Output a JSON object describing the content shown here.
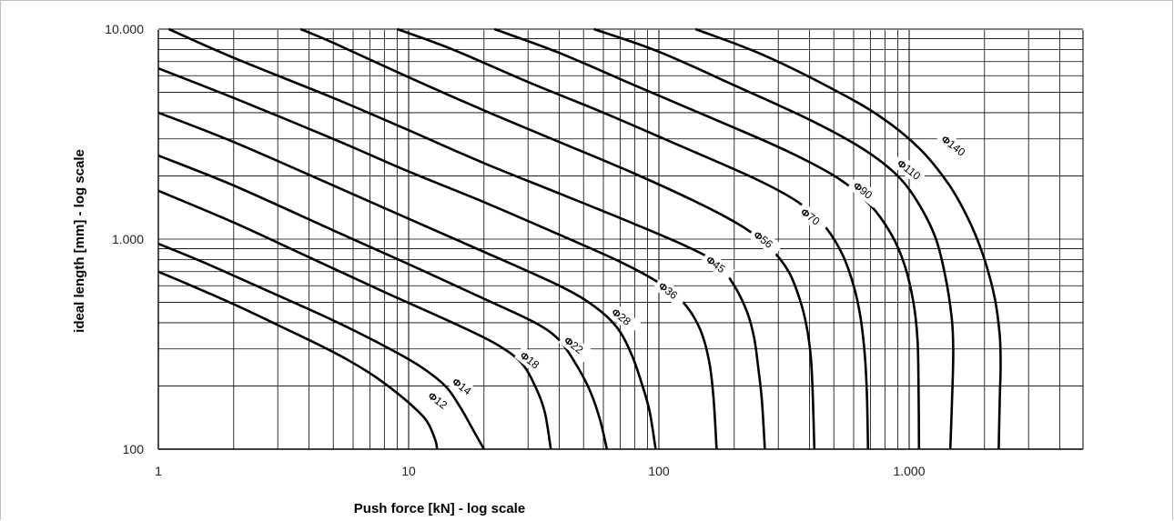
{
  "chart_data": {
    "type": "line",
    "title": "",
    "xlabel": "Push force [kN] - log scale",
    "ylabel": "ideal length [mm] - log scale",
    "x_scale": "log",
    "y_scale": "log",
    "xlim": [
      1,
      5000
    ],
    "ylim": [
      100,
      10000
    ],
    "grid": true,
    "x_ticks": [
      {
        "value": 1,
        "label": "1"
      },
      {
        "value": 10,
        "label": "10"
      },
      {
        "value": 100,
        "label": "100"
      },
      {
        "value": 1000,
        "label": "1.000"
      }
    ],
    "y_ticks": [
      {
        "value": 100,
        "label": "100"
      },
      {
        "value": 1000,
        "label": "1.000"
      },
      {
        "value": 10000,
        "label": "10.000"
      }
    ],
    "series": [
      {
        "name": "Φ12",
        "label_symbol": "Φ",
        "label_number": "12",
        "label_at": [
          12,
          180
        ],
        "points": [
          [
            1,
            700
          ],
          [
            1.5,
            570
          ],
          [
            2,
            490
          ],
          [
            3,
            390
          ],
          [
            5,
            290
          ],
          [
            7,
            230
          ],
          [
            9,
            185
          ],
          [
            11,
            150
          ],
          [
            12,
            132
          ],
          [
            12.8,
            110
          ],
          [
            13,
            100
          ]
        ]
      },
      {
        "name": "Φ14",
        "label_symbol": "Φ",
        "label_number": "14",
        "label_at": [
          15,
          210
        ],
        "points": [
          [
            1,
            950
          ],
          [
            1.5,
            780
          ],
          [
            2,
            670
          ],
          [
            3,
            540
          ],
          [
            5,
            410
          ],
          [
            8,
            310
          ],
          [
            11,
            250
          ],
          [
            14,
            200
          ],
          [
            16,
            160
          ],
          [
            18,
            125
          ],
          [
            20,
            100
          ]
        ]
      },
      {
        "name": "Φ18",
        "label_symbol": "Φ",
        "label_number": "18",
        "label_at": [
          28,
          280
        ],
        "points": [
          [
            1,
            1700
          ],
          [
            2,
            1200
          ],
          [
            4,
            820
          ],
          [
            8,
            560
          ],
          [
            15,
            400
          ],
          [
            22,
            320
          ],
          [
            28,
            260
          ],
          [
            32,
            200
          ],
          [
            35,
            150
          ],
          [
            37,
            100
          ]
        ]
      },
      {
        "name": "Φ22",
        "label_symbol": "Φ",
        "label_number": "22",
        "label_at": [
          42,
          330
        ],
        "points": [
          [
            1,
            2500
          ],
          [
            2,
            1800
          ],
          [
            5,
            1100
          ],
          [
            10,
            760
          ],
          [
            20,
            520
          ],
          [
            32,
            400
          ],
          [
            40,
            330
          ],
          [
            47,
            250
          ],
          [
            53,
            190
          ],
          [
            58,
            140
          ],
          [
            62,
            100
          ]
        ]
      },
      {
        "name": "Φ28",
        "label_symbol": "Φ",
        "label_number": "28",
        "label_at": [
          65,
          450
        ],
        "points": [
          [
            1,
            4000
          ],
          [
            2,
            2900
          ],
          [
            5,
            1800
          ],
          [
            10,
            1250
          ],
          [
            20,
            870
          ],
          [
            40,
            600
          ],
          [
            55,
            480
          ],
          [
            68,
            380
          ],
          [
            78,
            280
          ],
          [
            86,
            200
          ],
          [
            92,
            150
          ],
          [
            97,
            100
          ]
        ]
      },
      {
        "name": "Φ36",
        "label_symbol": "Φ",
        "label_number": "36",
        "label_at": [
          100,
          600
        ],
        "points": [
          [
            1,
            6500
          ],
          [
            2,
            4700
          ],
          [
            5,
            3000
          ],
          [
            10,
            2100
          ],
          [
            20,
            1500
          ],
          [
            40,
            1050
          ],
          [
            70,
            780
          ],
          [
            100,
            620
          ],
          [
            125,
            500
          ],
          [
            145,
            380
          ],
          [
            158,
            270
          ],
          [
            165,
            180
          ],
          [
            170,
            100
          ]
        ]
      },
      {
        "name": "Φ45",
        "label_symbol": "Φ",
        "label_number": "45",
        "label_at": [
          155,
          800
        ],
        "points": [
          [
            1.1,
            10000
          ],
          [
            2,
            7300
          ],
          [
            5,
            4700
          ],
          [
            10,
            3300
          ],
          [
            20,
            2300
          ],
          [
            40,
            1650
          ],
          [
            80,
            1180
          ],
          [
            130,
            920
          ],
          [
            170,
            770
          ],
          [
            200,
            600
          ],
          [
            225,
            450
          ],
          [
            240,
            340
          ],
          [
            250,
            240
          ],
          [
            258,
            170
          ],
          [
            265,
            100
          ]
        ]
      },
      {
        "name": "Φ56",
        "label_symbol": "Φ",
        "label_number": "56",
        "label_at": [
          240,
          1050
        ],
        "points": [
          [
            3.7,
            10000
          ],
          [
            5,
            8600
          ],
          [
            10,
            5900
          ],
          [
            20,
            4100
          ],
          [
            40,
            2900
          ],
          [
            80,
            2050
          ],
          [
            150,
            1450
          ],
          [
            220,
            1130
          ],
          [
            280,
            900
          ],
          [
            330,
            700
          ],
          [
            365,
            520
          ],
          [
            390,
            380
          ],
          [
            405,
            270
          ],
          [
            412,
            180
          ],
          [
            418,
            100
          ]
        ]
      },
      {
        "name": "Φ70",
        "label_symbol": "Φ",
        "label_number": "70",
        "label_at": [
          370,
          1350
        ],
        "points": [
          [
            9,
            10000
          ],
          [
            15,
            8000
          ],
          [
            30,
            5600
          ],
          [
            60,
            4000
          ],
          [
            120,
            2800
          ],
          [
            240,
            1950
          ],
          [
            360,
            1500
          ],
          [
            460,
            1150
          ],
          [
            540,
            850
          ],
          [
            600,
            600
          ],
          [
            640,
            420
          ],
          [
            665,
            280
          ],
          [
            678,
            180
          ],
          [
            685,
            100
          ]
        ]
      },
      {
        "name": "Φ90",
        "label_symbol": "Φ",
        "label_number": "90",
        "label_at": [
          600,
          1800
        ],
        "points": [
          [
            22,
            10000
          ],
          [
            40,
            7700
          ],
          [
            80,
            5400
          ],
          [
            160,
            3800
          ],
          [
            320,
            2650
          ],
          [
            520,
            1950
          ],
          [
            700,
            1450
          ],
          [
            850,
            1050
          ],
          [
            960,
            750
          ],
          [
            1040,
            500
          ],
          [
            1080,
            330
          ],
          [
            1090,
            200
          ],
          [
            1095,
            100
          ]
        ]
      },
      {
        "name": "Φ110",
        "label_symbol": "Φ",
        "label_number": "110",
        "label_at": [
          900,
          2300
        ],
        "points": [
          [
            55,
            10000
          ],
          [
            100,
            7800
          ],
          [
            200,
            5400
          ],
          [
            400,
            3700
          ],
          [
            650,
            2700
          ],
          [
            900,
            2000
          ],
          [
            1100,
            1450
          ],
          [
            1280,
            1000
          ],
          [
            1400,
            650
          ],
          [
            1480,
            420
          ],
          [
            1500,
            300
          ],
          [
            1490,
            200
          ],
          [
            1460,
            100
          ]
        ]
      },
      {
        "name": "Φ140",
        "label_symbol": "Φ",
        "label_number": "140",
        "label_at": [
          1350,
          3000
        ],
        "points": [
          [
            140,
            10000
          ],
          [
            250,
            7700
          ],
          [
            450,
            5500
          ],
          [
            750,
            3900
          ],
          [
            1100,
            2700
          ],
          [
            1450,
            1800
          ],
          [
            1750,
            1200
          ],
          [
            2000,
            800
          ],
          [
            2200,
            520
          ],
          [
            2300,
            350
          ],
          [
            2320,
            250
          ],
          [
            2300,
            170
          ],
          [
            2280,
            100
          ]
        ]
      }
    ]
  }
}
